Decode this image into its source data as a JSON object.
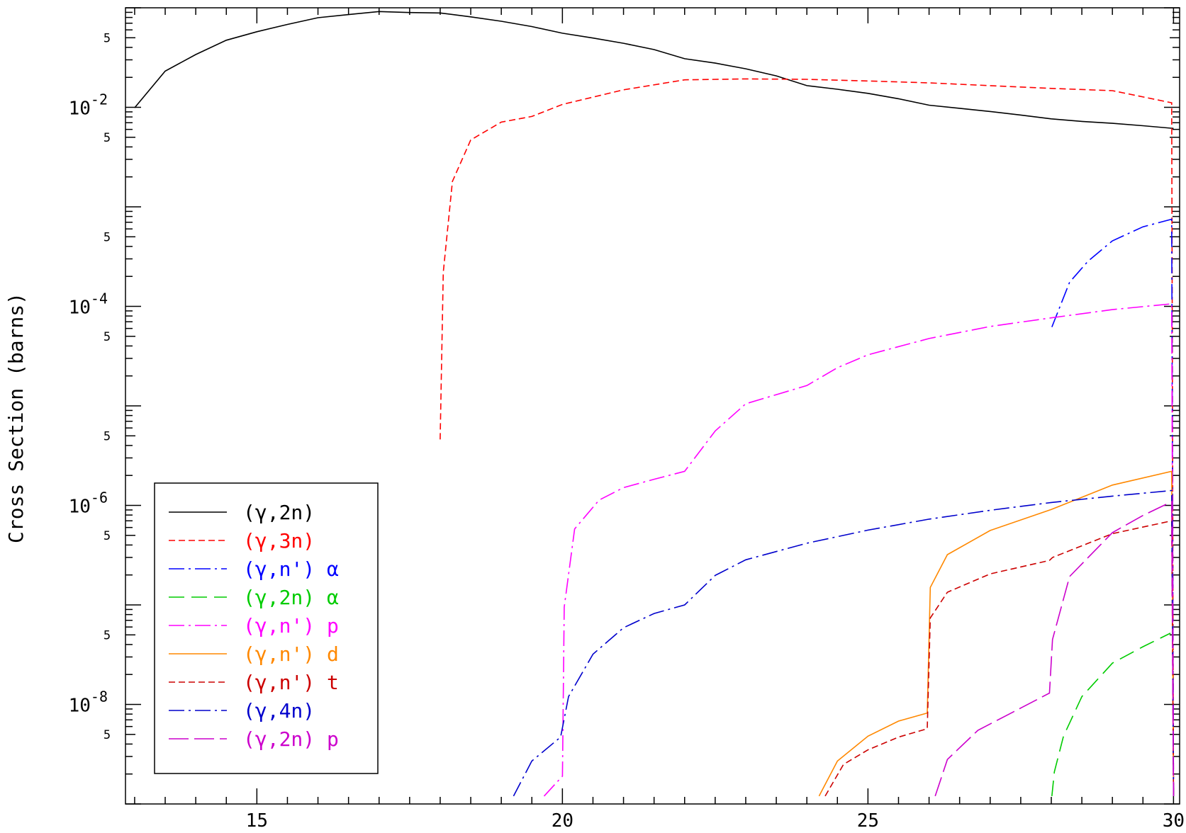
{
  "chart_data": {
    "type": "line",
    "title": "",
    "xlabel": "",
    "ylabel": "Cross Section (barns)",
    "y_scale": "log",
    "xlim": [
      12.85,
      30.1
    ],
    "ylim": [
      1e-09,
      0.1
    ],
    "grid": false,
    "legend_position": "bottom-left",
    "x_ticks": [
      {
        "value": 15,
        "label": "15"
      },
      {
        "value": 20,
        "label": "20"
      },
      {
        "value": 25,
        "label": "25"
      },
      {
        "value": 30,
        "label": "30"
      }
    ],
    "y_ticks": [
      {
        "value": 0.01,
        "base": "10",
        "exp": "-2"
      },
      {
        "value": 0.0001,
        "base": "10",
        "exp": "-4"
      },
      {
        "value": 1e-06,
        "base": "10",
        "exp": "-6"
      },
      {
        "value": 1e-08,
        "base": "10",
        "exp": "-8"
      }
    ],
    "y_minor_labels": [
      {
        "value": 0.05,
        "label": "5"
      },
      {
        "value": 0.005,
        "label": "5"
      },
      {
        "value": 0.0005,
        "label": "5"
      },
      {
        "value": 5e-05,
        "label": "5"
      },
      {
        "value": 5e-06,
        "label": "5"
      },
      {
        "value": 5e-07,
        "label": "5"
      },
      {
        "value": 5e-08,
        "label": "5"
      },
      {
        "value": 5e-09,
        "label": "5"
      }
    ],
    "series": [
      {
        "name": "(γ,2n)",
        "color": "#000000",
        "dash": "",
        "points": [
          [
            13,
            0.0099
          ],
          [
            13.5,
            0.0231
          ],
          [
            14,
            0.0339
          ],
          [
            14.5,
            0.0472
          ],
          [
            15,
            0.0575
          ],
          [
            15.5,
            0.068
          ],
          [
            16,
            0.0795
          ],
          [
            16.5,
            0.0855
          ],
          [
            17,
            0.0917
          ],
          [
            17.5,
            0.0896
          ],
          [
            18,
            0.0887
          ],
          [
            18.5,
            0.0811
          ],
          [
            19,
            0.0732
          ],
          [
            19.5,
            0.0648
          ],
          [
            20,
            0.0555
          ],
          [
            20.5,
            0.0497
          ],
          [
            21,
            0.044
          ],
          [
            21.5,
            0.038
          ],
          [
            22,
            0.0308
          ],
          [
            22.5,
            0.0278
          ],
          [
            23,
            0.0244
          ],
          [
            23.5,
            0.0207
          ],
          [
            24,
            0.0165
          ],
          [
            24.5,
            0.0152
          ],
          [
            25,
            0.0138
          ],
          [
            25.5,
            0.0122
          ],
          [
            26,
            0.0105
          ],
          [
            26.5,
            0.00977
          ],
          [
            27,
            0.00908
          ],
          [
            27.5,
            0.00837
          ],
          [
            28,
            0.00766
          ],
          [
            28.5,
            0.00722
          ],
          [
            29,
            0.0069
          ],
          [
            29.5,
            0.00653
          ],
          [
            30,
            0.00614
          ]
        ]
      },
      {
        "name": "(γ,3n)",
        "color": "#ff0000",
        "dash": "9,5",
        "points": [
          [
            18,
            4.6e-06
          ],
          [
            18.05,
            0.00022
          ],
          [
            18.2,
            0.0018
          ],
          [
            18.5,
            0.0047
          ],
          [
            19,
            0.0071
          ],
          [
            19.5,
            0.0081
          ],
          [
            20,
            0.0107
          ],
          [
            21,
            0.015
          ],
          [
            22,
            0.0189
          ],
          [
            23,
            0.0193
          ],
          [
            24,
            0.0191
          ],
          [
            25,
            0.0184
          ],
          [
            26,
            0.0176
          ],
          [
            27,
            0.0165
          ],
          [
            28,
            0.0155
          ],
          [
            29,
            0.0147
          ],
          [
            29.97,
            0.0111
          ],
          [
            30,
            1.2e-09
          ]
        ]
      },
      {
        "name": "(γ,n') α",
        "color": "#0000ff",
        "dash": "22,6,3,6",
        "points": [
          [
            28.01,
            6.2e-05
          ],
          [
            28.3,
            0.000175
          ],
          [
            28.6,
            0.000284
          ],
          [
            29,
            0.000455
          ],
          [
            29.5,
            0.00063
          ],
          [
            29.97,
            0.000751
          ],
          [
            30,
            1.2e-09
          ]
        ]
      },
      {
        "name": "(γ,2n) α",
        "color": "#00cc00",
        "dash": "22,10",
        "points": [
          [
            28.01,
            1.2e-09
          ],
          [
            28.05,
            2.1e-09
          ],
          [
            28.2,
            4.8e-09
          ],
          [
            28.5,
            1.2e-08
          ],
          [
            29,
            2.6e-08
          ],
          [
            29.5,
            3.8e-08
          ],
          [
            29.95,
            5.2e-08
          ]
        ]
      },
      {
        "name": "(γ,n') p",
        "color": "#ff00ff",
        "dash": "22,6,3,6",
        "points": [
          [
            19.7,
            1.2e-09
          ],
          [
            20,
            1.9e-09
          ],
          [
            20.03,
            9.5e-08
          ],
          [
            20.2,
            5.8e-07
          ],
          [
            20.6,
            1.13e-06
          ],
          [
            21,
            1.51e-06
          ],
          [
            21.5,
            1.83e-06
          ],
          [
            22,
            2.2e-06
          ],
          [
            22.5,
            5.6e-06
          ],
          [
            23,
            1.05e-05
          ],
          [
            24,
            1.6e-05
          ],
          [
            24.5,
            2.42e-05
          ],
          [
            25,
            3.26e-05
          ],
          [
            26,
            4.75e-05
          ],
          [
            27,
            6.28e-05
          ],
          [
            28,
            7.67e-05
          ],
          [
            29,
            9.27e-05
          ],
          [
            29.97,
            0.000106
          ],
          [
            30,
            1.2e-09
          ]
        ]
      },
      {
        "name": "(γ,n') d",
        "color": "#ff8800",
        "dash": "",
        "points": [
          [
            24.2,
            1.2e-09
          ],
          [
            24.5,
            2.7e-09
          ],
          [
            25,
            4.8e-09
          ],
          [
            25.5,
            6.8e-09
          ],
          [
            25.97,
            8.2e-09
          ],
          [
            26.02,
            1.5e-07
          ],
          [
            26.3,
            3.2e-07
          ],
          [
            27,
            5.6e-07
          ],
          [
            28,
            9.1e-07
          ],
          [
            29,
            1.6e-06
          ],
          [
            29.97,
            2.2e-06
          ],
          [
            30,
            1.2e-09
          ]
        ]
      },
      {
        "name": "(γ,n') t",
        "color": "#cc0000",
        "dash": "9,5",
        "points": [
          [
            24.3,
            1.2e-09
          ],
          [
            24.6,
            2.5e-09
          ],
          [
            25,
            3.5e-09
          ],
          [
            25.5,
            4.7e-09
          ],
          [
            25.97,
            5.7e-09
          ],
          [
            26.02,
            7.4e-08
          ],
          [
            26.3,
            1.34e-07
          ],
          [
            27,
            2.05e-07
          ],
          [
            27.97,
            2.8e-07
          ],
          [
            28.02,
            3e-07
          ],
          [
            29,
            5.2e-07
          ],
          [
            29.97,
            7e-07
          ],
          [
            30,
            1.2e-09
          ]
        ]
      },
      {
        "name": "(γ,4n)",
        "color": "#0000cc",
        "dash": "22,6,3,6",
        "points": [
          [
            19.2,
            1.2e-09
          ],
          [
            19.5,
            2.7e-09
          ],
          [
            19.97,
            4.7e-09
          ],
          [
            20.1,
            1.2e-08
          ],
          [
            20.5,
            3.2e-08
          ],
          [
            21,
            5.9e-08
          ],
          [
            21.5,
            8.2e-08
          ],
          [
            22,
            1e-07
          ],
          [
            22.5,
            1.98e-07
          ],
          [
            23,
            2.84e-07
          ],
          [
            24,
            4.17e-07
          ],
          [
            25,
            5.64e-07
          ],
          [
            26,
            7.28e-07
          ],
          [
            27,
            8.93e-07
          ],
          [
            28,
            1.07e-06
          ],
          [
            29,
            1.24e-06
          ],
          [
            29.97,
            1.41e-06
          ],
          [
            30,
            1.2e-09
          ]
        ]
      },
      {
        "name": "(γ,2n) p",
        "color": "#cc00cc",
        "dash": "28,8",
        "points": [
          [
            26.1,
            1.2e-09
          ],
          [
            26.3,
            2.8e-09
          ],
          [
            26.8,
            5.5e-09
          ],
          [
            27.5,
            9.2e-09
          ],
          [
            27.97,
            1.3e-08
          ],
          [
            28.02,
            4.5e-08
          ],
          [
            28.3,
            1.93e-07
          ],
          [
            29,
            5.33e-07
          ],
          [
            29.5,
            7.93e-07
          ],
          [
            29.97,
            1.09e-06
          ],
          [
            30,
            1.2e-09
          ]
        ]
      }
    ]
  }
}
